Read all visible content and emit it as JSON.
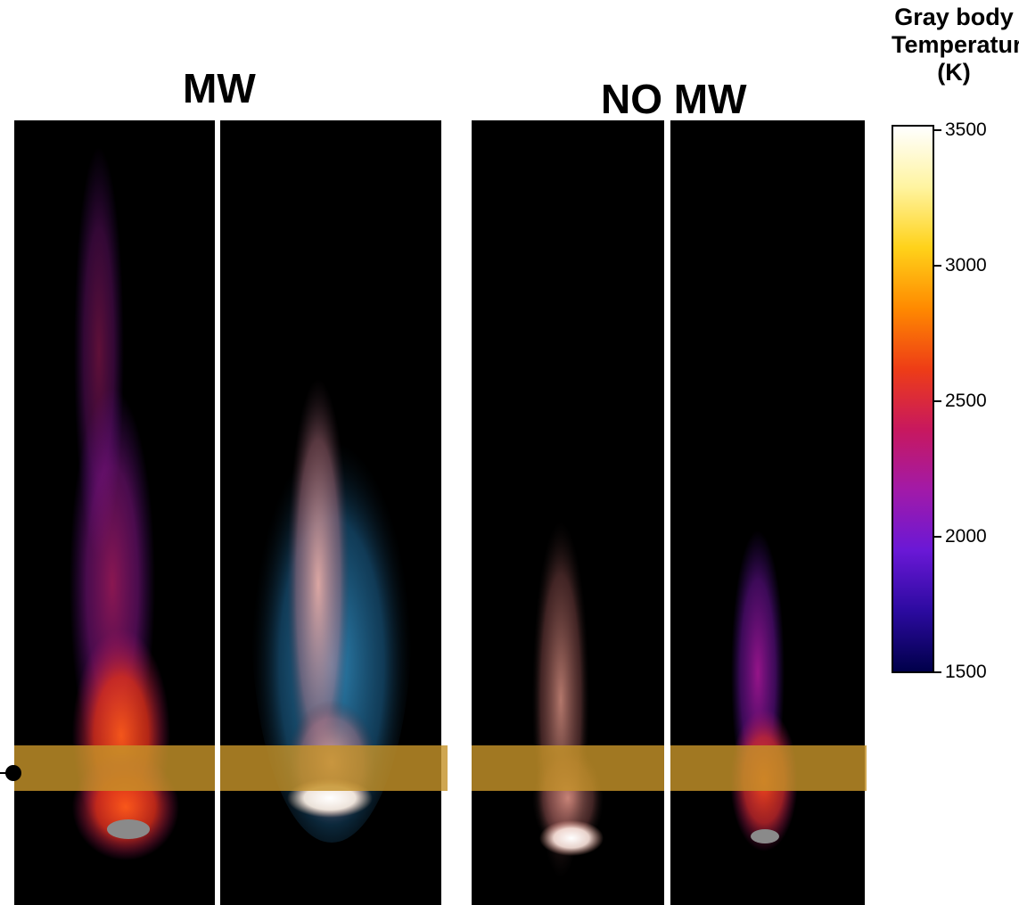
{
  "labels": {
    "left_group": "MW",
    "right_group": "NO MW"
  },
  "colorbar": {
    "title_line1": "Gray body",
    "title_line2": "Temperature",
    "title_line3": "(K)",
    "ticks": [
      "3500",
      "3000",
      "2500",
      "2000",
      "1500"
    ],
    "colors": [
      "#ffffff",
      "#fff4a0",
      "#ffd21a",
      "#ff8a00",
      "#ee3d16",
      "#c8185e",
      "#a21aa8",
      "#6a18d6",
      "#2c0aa0",
      "#00004a"
    ]
  },
  "highlight_band_color": "#c4922a"
}
